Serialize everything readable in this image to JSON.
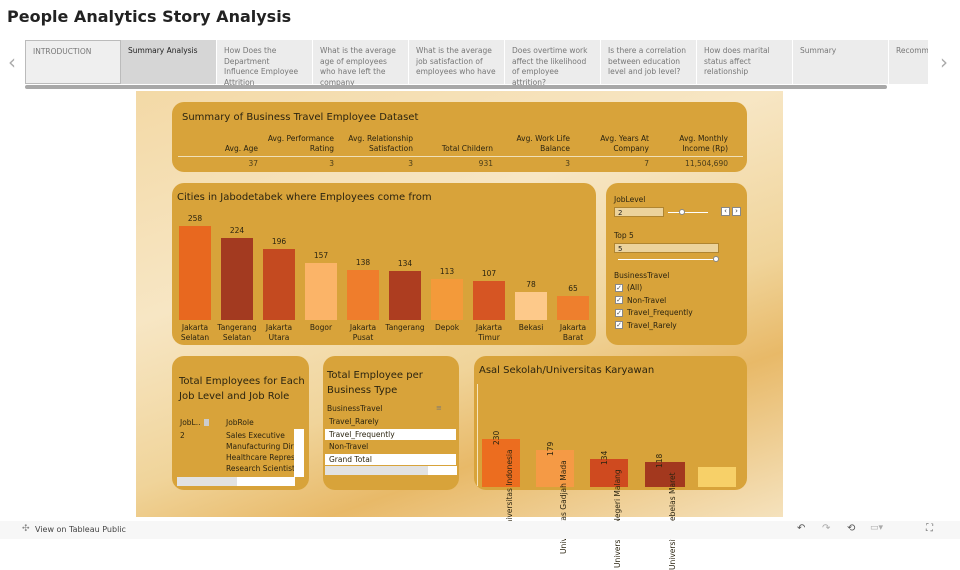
{
  "title": "People Analytics Story Analysis",
  "story_points": [
    {
      "label": "INTRODUCTION"
    },
    {
      "label": "Summary Analysis",
      "selected": true
    },
    {
      "label": "How Does the Department Influence Employee Attrition"
    },
    {
      "label": "What is the average age of employees who have left the company"
    },
    {
      "label": "What is the average job satisfaction of employees who have"
    },
    {
      "label": "Does overtime work affect the likelihood of employee attrition?"
    },
    {
      "label": "Is there a correlation between education level and job level?"
    },
    {
      "label": "How does marital status affect relationship"
    },
    {
      "label": "Summary"
    },
    {
      "label": "Recommen"
    }
  ],
  "summary": {
    "title": "Summary of Business Travel Employee Dataset",
    "kpis": [
      {
        "label": "Avg. Age",
        "value": "37"
      },
      {
        "label": "Avg. Performance Rating",
        "value": "3"
      },
      {
        "label": "Avg. Relationship Satisfaction",
        "value": "3"
      },
      {
        "label": "Total Childern",
        "value": "931"
      },
      {
        "label": "Avg. Work Life Balance",
        "value": "3"
      },
      {
        "label": "Avg. Years At Company",
        "value": "7"
      },
      {
        "label": "Avg. Monthly Income (Rp)",
        "value": "11,504,690"
      }
    ]
  },
  "chart_data": [
    {
      "type": "bar",
      "title": "Cities in Jabodetabek where Employees come from",
      "categories": [
        "Jakarta Selatan",
        "Tangerang Selatan",
        "Jakarta Utara",
        "Bogor",
        "Jakarta Pusat",
        "Tangerang",
        "Depok",
        "Jakarta Timur",
        "Bekasi",
        "Jakarta Barat"
      ],
      "values": [
        258,
        224,
        196,
        157,
        138,
        134,
        113,
        107,
        78,
        65
      ],
      "colors": [
        "#e8681f",
        "#a33a20",
        "#c44a20",
        "#fbb468",
        "#ef7d2c",
        "#ad3d20",
        "#f39a3a",
        "#d65523",
        "#fdc98a",
        "#ee7f2d"
      ]
    },
    {
      "type": "bar",
      "title": "Asal Sekolah/Universitas Karyawan",
      "categories": [
        "Universitas Indonesia",
        "Universitas Gadjah Mada",
        "Universitas Negeri Malang",
        "Universitas Sebelas Maret",
        ""
      ],
      "values": [
        230,
        179,
        134,
        118,
        96
      ],
      "labels": [
        "230",
        "179",
        "134",
        "118",
        ""
      ],
      "colors": [
        "#ec6d1f",
        "#f59a45",
        "#cf4a1f",
        "#a3381e",
        "#f7d068"
      ]
    }
  ],
  "filters": {
    "joblevel_label": "JobLevel",
    "joblevel_value": "2",
    "top_label": "Top 5",
    "top_value": "5",
    "bt_label": "BusinessTravel",
    "options": [
      {
        "label": "(All)",
        "checked": true
      },
      {
        "label": "Non-Travel",
        "checked": true
      },
      {
        "label": "Travel_Frequently",
        "checked": true
      },
      {
        "label": "Travel_Rarely",
        "checked": true
      }
    ]
  },
  "jobtable": {
    "title": "Total Employees for Each Job Level and Job Role",
    "col1": "JobL..",
    "col2": "JobRole",
    "level": "2",
    "roles": [
      "Sales Executive",
      "Manufacturing Dire",
      "Healthcare Represe",
      "Research Scientist"
    ]
  },
  "bttable": {
    "title": "Total Employee per Business Type",
    "header": "BusinessTravel",
    "rows": [
      "Travel_Rarely",
      "Travel_Frequently",
      "Non-Travel",
      "Grand Total"
    ]
  },
  "footer": {
    "link": "View on Tableau Public"
  }
}
